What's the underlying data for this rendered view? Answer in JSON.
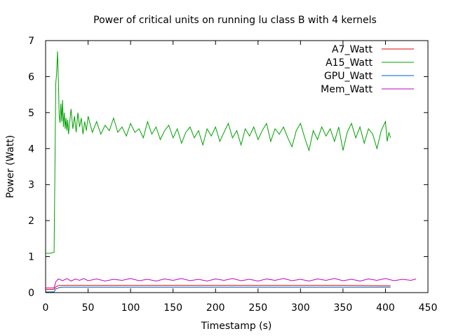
{
  "chart_data": {
    "type": "line",
    "title": "Power of critical units on running lu class B with 4 kernels",
    "xlabel": "Timestamp (s)",
    "ylabel": "Power (Watt)",
    "xlim": [
      0,
      450
    ],
    "ylim": [
      0,
      7
    ],
    "xticks": [
      0,
      50,
      100,
      150,
      200,
      250,
      300,
      350,
      400,
      450
    ],
    "yticks": [
      0,
      1,
      2,
      3,
      4,
      5,
      6,
      7
    ],
    "grid": false,
    "legend_position": "top-right",
    "series": [
      {
        "name": "A7_Watt",
        "color": "#e00000",
        "x": [
          0,
          10,
          12,
          16,
          50,
          100,
          150,
          200,
          250,
          300,
          350,
          400,
          406
        ],
        "y": [
          0.09,
          0.09,
          0.16,
          0.2,
          0.2,
          0.2,
          0.2,
          0.2,
          0.2,
          0.2,
          0.2,
          0.19,
          0.19
        ]
      },
      {
        "name": "A15_Watt",
        "color": "#00a000",
        "x": [
          0,
          5,
          10,
          11,
          12,
          13,
          14,
          15,
          16,
          17,
          18,
          19,
          20,
          21,
          22,
          23,
          24,
          25,
          26,
          27,
          28,
          30,
          32,
          34,
          36,
          38,
          40,
          42,
          44,
          46,
          48,
          50,
          55,
          60,
          65,
          70,
          75,
          80,
          85,
          90,
          95,
          100,
          105,
          110,
          115,
          120,
          125,
          130,
          135,
          140,
          145,
          150,
          155,
          160,
          165,
          170,
          175,
          180,
          185,
          190,
          195,
          200,
          205,
          210,
          215,
          220,
          225,
          230,
          235,
          240,
          245,
          250,
          255,
          260,
          265,
          270,
          275,
          280,
          285,
          290,
          295,
          300,
          305,
          310,
          315,
          320,
          325,
          330,
          335,
          340,
          345,
          350,
          355,
          360,
          365,
          370,
          375,
          380,
          385,
          390,
          395,
          400,
          402,
          404,
          406
        ],
        "y": [
          1.09,
          1.09,
          1.12,
          3.45,
          5.8,
          6.1,
          6.7,
          5.9,
          4.9,
          4.72,
          5.25,
          4.75,
          5.35,
          4.6,
          5.0,
          4.55,
          4.85,
          4.5,
          4.8,
          4.4,
          4.65,
          5.1,
          4.55,
          4.9,
          4.45,
          5.0,
          4.6,
          4.85,
          4.4,
          4.75,
          4.5,
          4.9,
          4.45,
          4.75,
          4.4,
          4.65,
          4.5,
          4.85,
          4.45,
          4.6,
          4.35,
          4.7,
          4.45,
          4.55,
          4.3,
          4.75,
          4.4,
          4.6,
          4.25,
          4.5,
          4.65,
          4.3,
          4.55,
          4.15,
          4.45,
          4.6,
          4.3,
          4.5,
          4.1,
          4.55,
          4.35,
          4.6,
          4.2,
          4.45,
          4.7,
          4.3,
          4.5,
          4.1,
          4.55,
          4.35,
          4.6,
          4.25,
          4.5,
          4.7,
          4.2,
          4.55,
          4.4,
          4.6,
          4.3,
          4.05,
          4.5,
          4.7,
          4.3,
          3.95,
          4.5,
          4.25,
          4.6,
          4.35,
          4.55,
          4.2,
          4.6,
          3.95,
          4.45,
          4.7,
          4.3,
          4.6,
          4.15,
          4.55,
          4.4,
          4.0,
          4.5,
          4.75,
          4.2,
          4.45,
          4.3
        ]
      },
      {
        "name": "GPU_Watt",
        "color": "#0060c0",
        "x": [
          0,
          10,
          12,
          16,
          20,
          50,
          100,
          150,
          200,
          250,
          300,
          350,
          400,
          406
        ],
        "y": [
          0.02,
          0.02,
          0.1,
          0.14,
          0.15,
          0.15,
          0.15,
          0.15,
          0.15,
          0.15,
          0.15,
          0.15,
          0.15,
          0.15
        ]
      },
      {
        "name": "Mem_Watt",
        "color": "#c000c0",
        "x": [
          0,
          10,
          12,
          15,
          20,
          25,
          30,
          35,
          40,
          45,
          50,
          60,
          70,
          80,
          90,
          100,
          110,
          120,
          130,
          140,
          150,
          160,
          170,
          180,
          190,
          200,
          210,
          220,
          230,
          240,
          250,
          260,
          270,
          280,
          290,
          300,
          310,
          320,
          330,
          340,
          350,
          360,
          370,
          380,
          390,
          400,
          410,
          420,
          430,
          436
        ],
        "y": [
          0.13,
          0.13,
          0.3,
          0.38,
          0.33,
          0.39,
          0.32,
          0.38,
          0.34,
          0.39,
          0.33,
          0.38,
          0.32,
          0.37,
          0.34,
          0.39,
          0.33,
          0.37,
          0.32,
          0.38,
          0.34,
          0.39,
          0.33,
          0.37,
          0.32,
          0.38,
          0.34,
          0.39,
          0.33,
          0.37,
          0.32,
          0.38,
          0.34,
          0.39,
          0.33,
          0.37,
          0.32,
          0.38,
          0.34,
          0.39,
          0.33,
          0.37,
          0.32,
          0.38,
          0.34,
          0.39,
          0.33,
          0.37,
          0.34,
          0.38
        ]
      }
    ]
  }
}
